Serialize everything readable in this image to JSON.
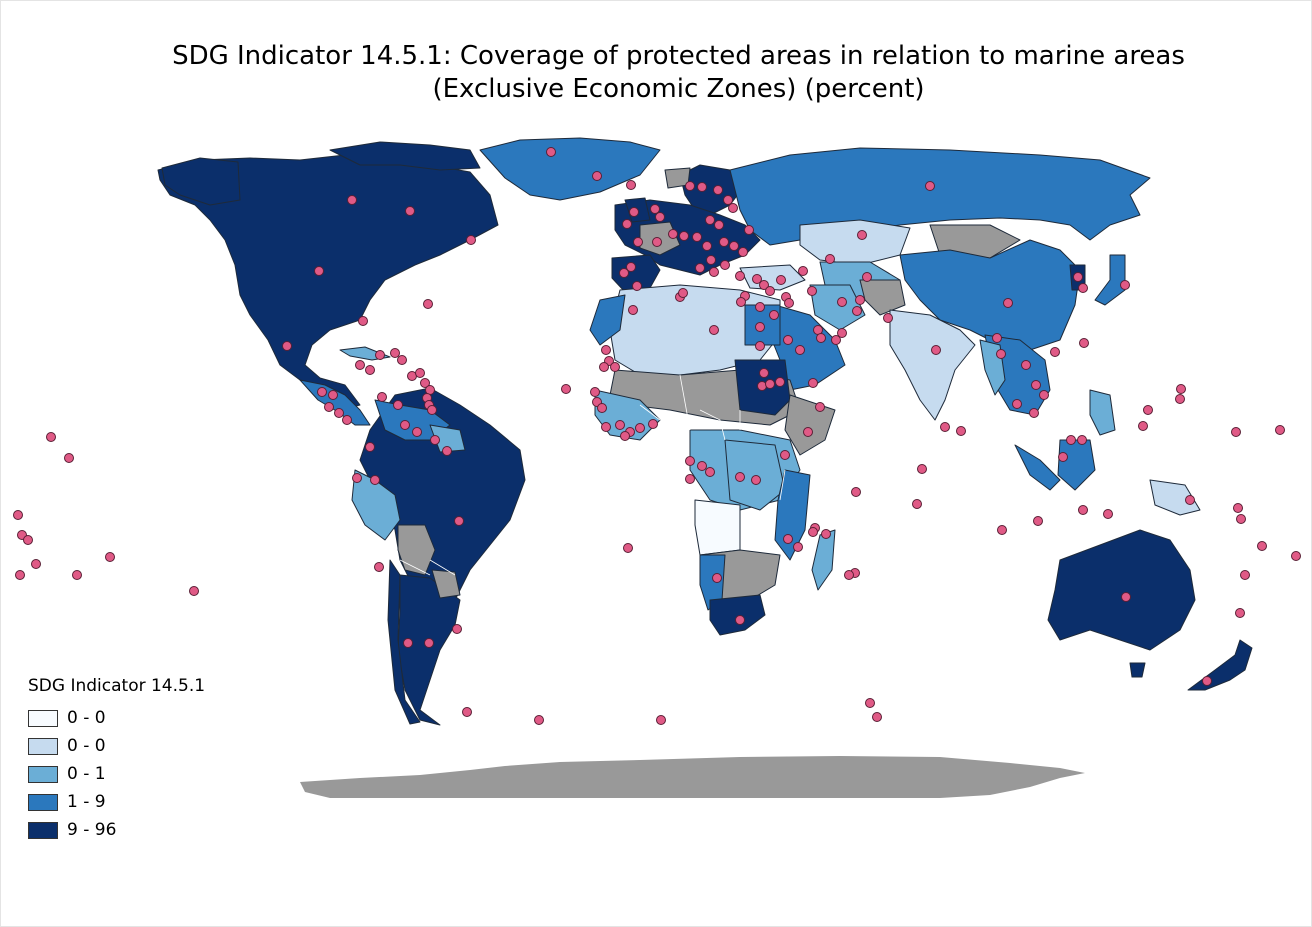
{
  "title": {
    "line1": "SDG Indicator 14.5.1: Coverage of protected areas in relation to marine areas",
    "line2": "(Exclusive Economic Zones) (percent)"
  },
  "legend": {
    "title": "SDG Indicator 14.5.1",
    "classes": [
      {
        "label": "0 - 0",
        "color": "#f7fbff"
      },
      {
        "label": "0 - 0",
        "color": "#c6dbef"
      },
      {
        "label": "0 - 1",
        "color": "#6baed6"
      },
      {
        "label": "1 - 9",
        "color": "#2b78bd"
      },
      {
        "label": "9 - 96",
        "color": "#0b2f6b"
      }
    ]
  },
  "colors": {
    "no_data": "#999999",
    "point_marker": "#e05a86",
    "border": "#1e2a3a"
  }
}
